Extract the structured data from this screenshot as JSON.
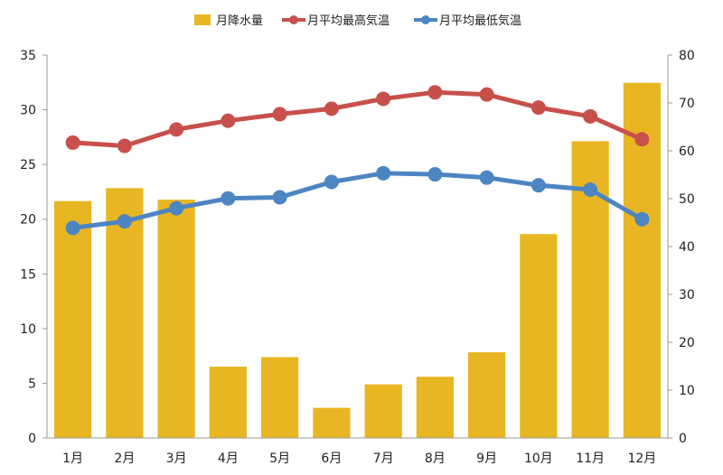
{
  "chart_data": {
    "type": "bar+line",
    "categories": [
      "1月",
      "2月",
      "3月",
      "4月",
      "5月",
      "6月",
      "7月",
      "8月",
      "9月",
      "10月",
      "11月",
      "12月"
    ],
    "series": [
      {
        "name": "月降水量",
        "type": "bar",
        "axis": "right",
        "color": "#E8B623",
        "values": [
          49.5,
          52.2,
          49.8,
          14.9,
          16.9,
          6.3,
          11.2,
          12.8,
          17.9,
          42.6,
          62.0,
          74.2
        ]
      },
      {
        "name": "月平均最高気温",
        "type": "line",
        "axis": "left",
        "color": "#C8504B",
        "values": [
          27.0,
          26.7,
          28.2,
          29.0,
          29.6,
          30.1,
          31.0,
          31.6,
          31.4,
          30.2,
          29.4,
          27.3
        ]
      },
      {
        "name": "月平均最低気温",
        "type": "line",
        "axis": "left",
        "color": "#4D85C3",
        "values": [
          19.2,
          19.8,
          21.0,
          21.9,
          22.0,
          23.4,
          24.2,
          24.1,
          23.8,
          23.1,
          22.7,
          20.0
        ]
      }
    ],
    "y_left": {
      "ylim": [
        0,
        35
      ],
      "ticks": [
        0,
        5,
        10,
        15,
        20,
        25,
        30,
        35
      ]
    },
    "y_right": {
      "ylim": [
        0,
        80
      ],
      "ticks": [
        0,
        10,
        20,
        30,
        40,
        50,
        60,
        70,
        80
      ]
    },
    "legend_placement": "top",
    "grid": false
  }
}
